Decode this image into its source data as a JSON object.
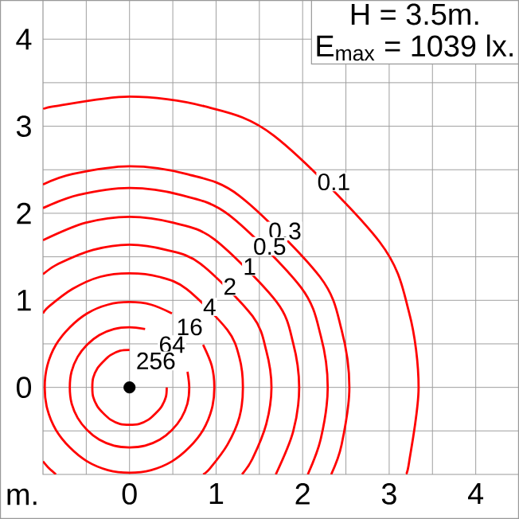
{
  "chart_data": {
    "type": "line",
    "xlabel": "m.",
    "annotations": [
      "H = 3.5m.",
      "E$_{max}$ = 1039 lx."
    ],
    "xlim": [
      -1,
      4.5
    ],
    "ylim": [
      -1,
      4.45
    ],
    "xticks": [
      {
        "value": -0.5,
        "label": null
      },
      0,
      {
        "value": 0.5,
        "label": null
      },
      1,
      {
        "value": 1.5,
        "label": null
      },
      2,
      {
        "value": 2.5,
        "label": null
      },
      3,
      {
        "value": 3.5,
        "label": null
      },
      4
    ],
    "yticks": [
      {
        "value": -0.5,
        "label": null
      },
      0,
      {
        "value": 0.5,
        "label": null
      },
      1,
      {
        "value": 1.5,
        "label": null
      },
      2,
      {
        "value": 2.5,
        "label": null
      },
      3,
      {
        "value": 3.5,
        "label": null
      },
      4
    ],
    "grid": true,
    "series": [
      {
        "name": "0.1",
        "color": "#ff0000",
        "x": [
          3.19,
          3.23,
          3.34,
          3.23,
          2.89,
          1.67,
          0.86,
          0,
          -0.86,
          -1
        ],
        "values": [
          -1,
          -0.86,
          0,
          0.86,
          1.67,
          2.89,
          3.23,
          3.34,
          3.23,
          3.19
        ]
      },
      {
        "name": "0.3",
        "color": "#ff0000",
        "x": [
          2.33,
          2.45,
          2.54,
          2.45,
          2.2,
          1.27,
          0.66,
          0,
          -0.66,
          -1
        ],
        "values": [
          -1,
          -0.66,
          0,
          0.66,
          1.27,
          2.2,
          2.45,
          2.54,
          2.45,
          2.33
        ]
      },
      {
        "name": "0.5",
        "color": "#ff0000",
        "x": [
          2.06,
          2.21,
          2.29,
          2.21,
          1.98,
          1.15,
          0.59,
          0,
          -0.59,
          -1
        ],
        "values": [
          -1,
          -0.59,
          0,
          0.59,
          1.15,
          1.98,
          2.21,
          2.29,
          2.21,
          2.06
        ]
      },
      {
        "name": "1",
        "color": "#ff0000",
        "x": [
          1.69,
          1.89,
          1.96,
          1.89,
          1.7,
          0.98,
          0.51,
          0,
          -0.51,
          -1
        ],
        "values": [
          -1,
          -0.51,
          0,
          0.51,
          0.98,
          1.7,
          1.89,
          1.96,
          1.89,
          1.69
        ]
      },
      {
        "name": "2",
        "color": "#ff0000",
        "x": [
          1.3,
          1.42,
          1.58,
          1.64,
          1.58,
          1.42,
          0.82,
          0.42,
          0,
          -0.42,
          -0.82,
          -1
        ],
        "values": [
          -1,
          -0.82,
          -0.42,
          0,
          0.42,
          0.82,
          1.42,
          1.58,
          1.64,
          1.58,
          1.42,
          1.3
        ]
      },
      {
        "name": "4",
        "color": "#ff0000",
        "x": [
          0.85,
          0.93,
          1.13,
          1.27,
          1.31,
          1.27,
          1.13,
          0.66,
          0.34,
          0,
          -0.34,
          -0.66,
          -0.93,
          -1
        ],
        "values": [
          -1,
          -0.93,
          -0.66,
          -0.34,
          0,
          0.34,
          0.66,
          1.13,
          1.27,
          1.31,
          1.27,
          1.13,
          0.93,
          0.85
        ]
      },
      {
        "name": "16",
        "color": "#ff0000",
        "x": [
          0.49,
          0.25,
          0,
          -0.25,
          -0.49,
          -0.69,
          -0.85,
          -0.95,
          -0.98,
          -0.95,
          -0.85,
          -0.69,
          -0.49,
          -0.25,
          0,
          0.25,
          0.49,
          0.69,
          0.85,
          0.95,
          0.98,
          0.95,
          0.85
        ],
        "values": [
          0.85,
          0.95,
          0.98,
          0.95,
          0.85,
          0.69,
          0.49,
          0.25,
          0,
          -0.25,
          -0.49,
          -0.69,
          -0.85,
          -0.95,
          -0.98,
          -0.95,
          -0.85,
          -0.69,
          -0.49,
          -0.25,
          0,
          0.25,
          0.49
        ]
      },
      {
        "name": "64",
        "color": "#ff0000",
        "x": [
          0.18,
          0,
          -0.18,
          -0.35,
          -0.49,
          -0.6,
          -0.67,
          -0.69,
          -0.67,
          -0.6,
          -0.49,
          -0.35,
          -0.18,
          0,
          0.18,
          0.35,
          0.49,
          0.6,
          0.67,
          0.69,
          0.67
        ],
        "values": [
          0.67,
          0.69,
          0.67,
          0.6,
          0.49,
          0.35,
          0.18,
          0,
          -0.18,
          -0.35,
          -0.49,
          -0.6,
          -0.67,
          -0.69,
          -0.67,
          -0.6,
          -0.49,
          -0.35,
          -0.18,
          0,
          0.18
        ]
      },
      {
        "name": "256",
        "color": "#ff0000",
        "x": [
          0,
          -0.11,
          -0.22,
          -0.3,
          -0.37,
          -0.42,
          -0.43,
          -0.42,
          -0.37,
          -0.3,
          -0.22,
          -0.11,
          0,
          0.11,
          0.22,
          0.3,
          0.37,
          0.42,
          0.43
        ],
        "values": [
          0.43,
          0.42,
          0.37,
          0.3,
          0.22,
          0.11,
          0,
          -0.11,
          -0.22,
          -0.3,
          -0.37,
          -0.42,
          -0.43,
          -0.42,
          -0.37,
          -0.3,
          -0.22,
          -0.11,
          0
        ]
      },
      {
        "color": "#ff0000",
        "x": [
          -1,
          -0.93,
          -0.85
        ],
        "values": [
          -0.85,
          -0.93,
          -1
        ]
      },
      {
        "type": "scatter",
        "color": "#000000",
        "x": [
          0
        ],
        "values": [
          0
        ]
      }
    ]
  }
}
